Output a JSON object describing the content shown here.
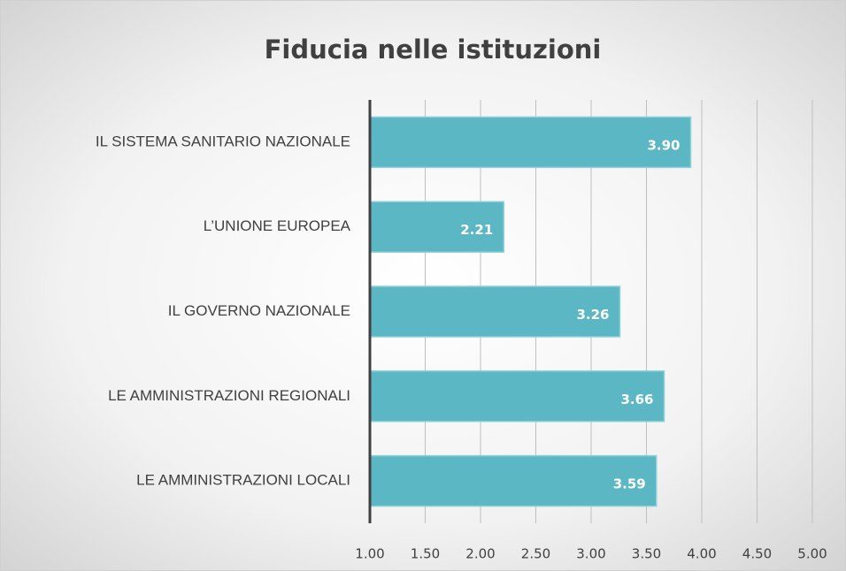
{
  "chart_data": {
    "type": "bar",
    "orientation": "horizontal",
    "title": "Fiducia nelle istituzioni",
    "categories": [
      "IL SISTEMA SANITARIO NAZIONALE",
      "L’UNIONE EUROPEA",
      "IL GOVERNO NAZIONALE",
      "LE AMMINISTRAZIONI REGIONALI",
      "LE AMMINISTRAZIONI LOCALI"
    ],
    "values": [
      3.9,
      2.21,
      3.26,
      3.66,
      3.59
    ],
    "value_labels": [
      "3.90",
      "2.21",
      "3.26",
      "3.66",
      "3.59"
    ],
    "color": "#5bb7c3",
    "xlim": [
      1,
      5
    ],
    "xticks": [
      {
        "value": 1,
        "label": "1.00"
      },
      {
        "value": 1.5,
        "label": "1.50"
      },
      {
        "value": 2,
        "label": "2.00"
      },
      {
        "value": 2.5,
        "label": "2.50"
      },
      {
        "value": 3,
        "label": "3.00"
      },
      {
        "value": 3.5,
        "label": "3.50"
      },
      {
        "value": 4,
        "label": "4.00"
      },
      {
        "value": 4.5,
        "label": "4.50"
      },
      {
        "value": 5,
        "label": "5.00"
      }
    ],
    "grid": true
  }
}
